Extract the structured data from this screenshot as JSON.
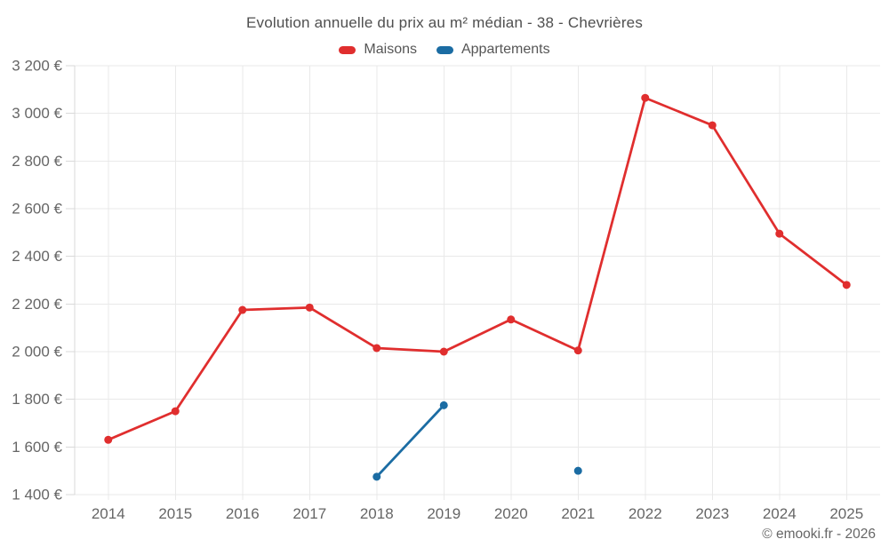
{
  "header": {
    "title": "Evolution annuelle du prix au m² médian - 38 - Chevrières"
  },
  "legend": {
    "items": [
      {
        "label": "Maisons",
        "color": "#e02e2e"
      },
      {
        "label": "Appartements",
        "color": "#1b6ca3"
      }
    ]
  },
  "chart_data": {
    "type": "line",
    "title": "Evolution annuelle du prix au m² médian - 38 - Chevrières",
    "x": [
      2014,
      2015,
      2016,
      2017,
      2018,
      2019,
      2020,
      2021,
      2022,
      2023,
      2024,
      2025
    ],
    "xtick_labels": [
      "2014",
      "2015",
      "2016",
      "2017",
      "2018",
      "2019",
      "2020",
      "2021",
      "2022",
      "2023",
      "2024",
      "2025"
    ],
    "series": [
      {
        "name": "Maisons",
        "color": "#e02e2e",
        "values": [
          1630,
          1750,
          2175,
          2185,
          2015,
          2000,
          2135,
          2005,
          3065,
          2950,
          2495,
          2280
        ]
      },
      {
        "name": "Appartements",
        "color": "#1b6ca3",
        "values": [
          null,
          null,
          null,
          null,
          1475,
          1775,
          null,
          1500,
          null,
          null,
          null,
          null
        ]
      }
    ],
    "ylim": [
      1400,
      3200
    ],
    "ytick_step": 200,
    "ytick_labels": [
      "1 400 €",
      "1 600 €",
      "1 800 €",
      "2 000 €",
      "2 200 €",
      "2 400 €",
      "2 600 €",
      "2 800 €",
      "3 000 €",
      "3 200 €"
    ],
    "currency_suffix": " €",
    "grid": true,
    "legend_position": "top"
  },
  "footer": {
    "text": "© emooki.fr - 2026"
  },
  "colors": {
    "grid": "#e9e9e9",
    "axis": "#d9d9d9",
    "tick_text": "#666666",
    "title_text": "#4f4f4f"
  }
}
